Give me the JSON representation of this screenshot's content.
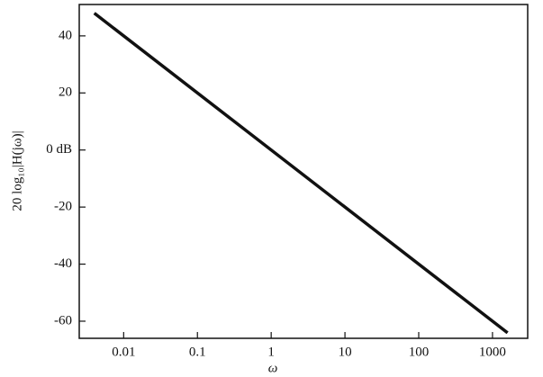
{
  "chart_data": {
    "type": "line",
    "x_label": "ω",
    "y_label": "20 log₁₀|H(jω)|",
    "x_scale": "log",
    "xlim": [
      0.0025,
      3000
    ],
    "xticks": [
      0.01,
      0.1,
      1,
      10,
      100,
      1000
    ],
    "ylim": [
      -66,
      51
    ],
    "yticks": [
      -60,
      -40,
      -20,
      {
        "value": 0,
        "label": "0 dB"
      },
      20,
      40
    ],
    "grid": false,
    "series": [
      {
        "color": "#111111",
        "x": [
          0.004,
          1600
        ],
        "values": [
          47.96,
          -64.08
        ]
      }
    ]
  }
}
